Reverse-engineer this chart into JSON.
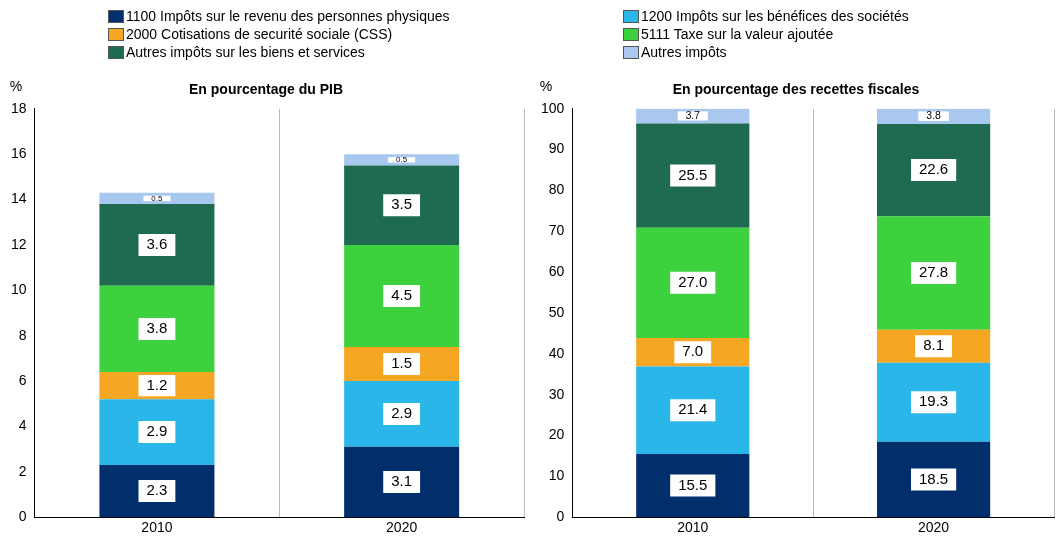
{
  "chart_data": [
    {
      "type": "bar",
      "title": "En pourcentage du PIB",
      "ylabel": "%",
      "categories": [
        "2010",
        "2020"
      ],
      "stacked": true,
      "ylim": [
        0,
        18
      ],
      "yticks": [
        0,
        2,
        4,
        6,
        8,
        10,
        12,
        14,
        16,
        18
      ],
      "grid": "x",
      "legend": "top",
      "series": [
        {
          "name": "1100 Impôts sur le revenu des personnes physiques",
          "color": "#002f6c",
          "values": [
            2.3,
            3.1
          ],
          "value_labels": [
            "2.3",
            "3.1"
          ]
        },
        {
          "name": "1200 Impôts sur les bénéfices des sociétés",
          "color": "#29b6e8",
          "values": [
            2.9,
            2.9
          ],
          "value_labels": [
            "2.9",
            "2.9"
          ]
        },
        {
          "name": "2000 Cotisations de securité sociale (CSS)",
          "color": "#f5a623",
          "values": [
            1.2,
            1.5
          ],
          "value_labels": [
            "1.2",
            "1.5"
          ]
        },
        {
          "name": "5111 Taxe sur la valeur ajoutée",
          "color": "#3dd13d",
          "values": [
            3.8,
            4.5
          ],
          "value_labels": [
            "3.8",
            "4.5"
          ]
        },
        {
          "name": "Autres impôts sur les biens et services",
          "color": "#1e6b52",
          "values": [
            3.6,
            3.5
          ],
          "value_labels": [
            "3.6",
            "3.5"
          ]
        },
        {
          "name": "Autres impôts",
          "color": "#a8c8ef",
          "values": [
            0.5,
            0.5
          ],
          "value_labels": [
            "0.5",
            "0.5"
          ]
        }
      ]
    },
    {
      "type": "bar",
      "title": "En pourcentage des recettes fiscales",
      "ylabel": "%",
      "categories": [
        "2010",
        "2020"
      ],
      "stacked": true,
      "ylim": [
        0,
        100
      ],
      "yticks": [
        0,
        10,
        20,
        30,
        40,
        50,
        60,
        70,
        80,
        90,
        100
      ],
      "grid": "x",
      "series": [
        {
          "color": "#002f6c",
          "values": [
            15.5,
            18.5
          ],
          "value_labels": [
            "15.5",
            "18.5"
          ]
        },
        {
          "color": "#29b6e8",
          "values": [
            21.4,
            19.3
          ],
          "value_labels": [
            "21.4",
            "19.3"
          ]
        },
        {
          "color": "#f5a623",
          "values": [
            7.0,
            8.1
          ],
          "value_labels": [
            "7.0",
            "8.1"
          ]
        },
        {
          "color": "#3dd13d",
          "values": [
            27.0,
            27.8
          ],
          "value_labels": [
            "27.0",
            "27.8"
          ]
        },
        {
          "color": "#1e6b52",
          "values": [
            25.5,
            22.6
          ],
          "value_labels": [
            "25.5",
            "22.6"
          ]
        },
        {
          "color": "#a8c8ef",
          "values": [
            3.7,
            3.8
          ],
          "value_labels": [
            "3.7",
            "3.8"
          ]
        }
      ]
    }
  ]
}
